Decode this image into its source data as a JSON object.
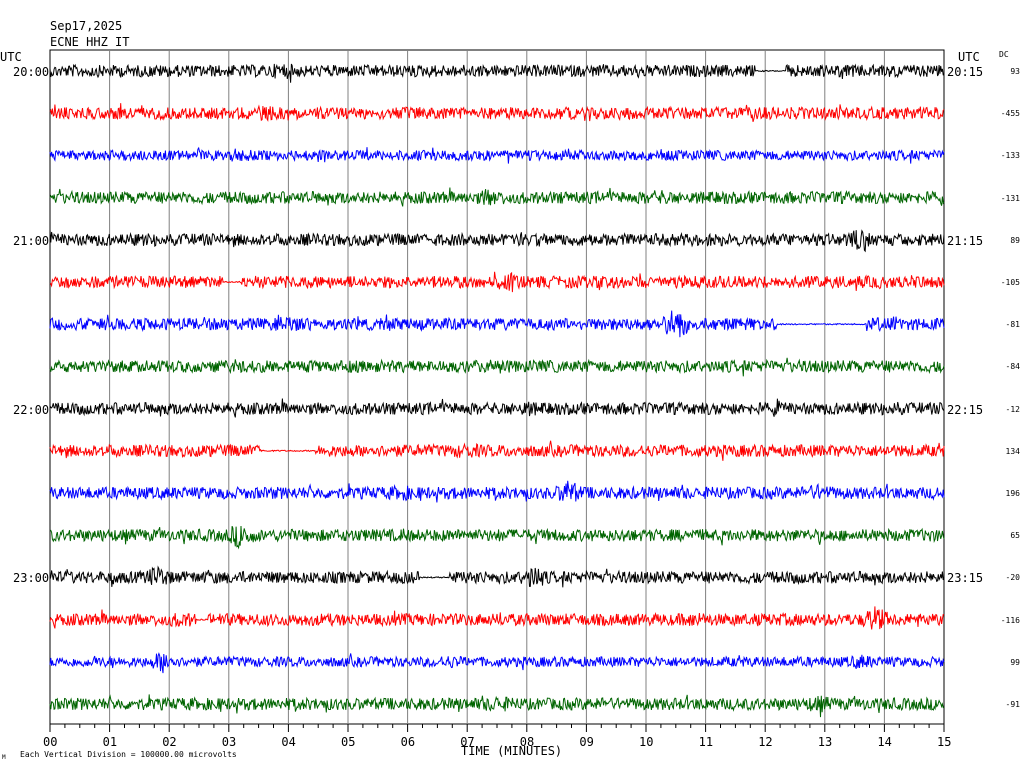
{
  "header": {
    "date": "Sep17,2025",
    "station": "ECNE HHZ IT",
    "left_tz": "UTC",
    "right_tz": "UTC",
    "dc_label": "DC"
  },
  "footer": {
    "scale_note": "Each Vertical Division = 100000.00 microvolts",
    "mark": "M",
    "xlabel": "TIME (MINUTES)"
  },
  "colors": {
    "cycle": [
      "#000000",
      "#ff0000",
      "#0000ff",
      "#006400"
    ],
    "grid": "#808080"
  },
  "chart_data": {
    "type": "line",
    "title": "",
    "xlabel": "TIME (MINUTES)",
    "ylabel": "",
    "xlim": [
      0,
      15
    ],
    "x_ticks": [
      "00",
      "01",
      "02",
      "03",
      "04",
      "05",
      "06",
      "07",
      "08",
      "09",
      "10",
      "11",
      "12",
      "13",
      "14",
      "15"
    ],
    "grid": true,
    "series": [
      {
        "start_label": "20:00",
        "end_label": "20:15",
        "dc": "93",
        "amp": 6,
        "events": [
          {
            "t": 3.9,
            "a": 9
          },
          {
            "t": 11.8,
            "a": 5
          }
        ],
        "gaps": [
          [
            11.85,
            12.35
          ]
        ]
      },
      {
        "start_label": "",
        "end_label": "",
        "dc": "-455",
        "amp": 6,
        "events": [
          {
            "t": 3.6,
            "a": 8
          },
          {
            "t": 14.7,
            "a": 7
          }
        ],
        "gaps": []
      },
      {
        "start_label": "",
        "end_label": "",
        "dc": "-133",
        "amp": 5,
        "events": [
          {
            "t": 3.2,
            "a": 8
          }
        ],
        "gaps": []
      },
      {
        "start_label": "",
        "end_label": "",
        "dc": "-131",
        "amp": 6,
        "events": [
          {
            "t": 7.4,
            "a": 10
          },
          {
            "t": 10.2,
            "a": 8
          }
        ],
        "gaps": []
      },
      {
        "start_label": "21:00",
        "end_label": "21:15",
        "dc": "89",
        "amp": 6,
        "events": [
          {
            "t": 13.6,
            "a": 12
          },
          {
            "t": 1.75,
            "a": 7
          }
        ],
        "gaps": []
      },
      {
        "start_label": "",
        "end_label": "",
        "dc": "-105",
        "amp": 6,
        "events": [
          {
            "t": 7.7,
            "a": 10
          }
        ],
        "gaps": [
          [
            2.9,
            3.2
          ]
        ]
      },
      {
        "start_label": "",
        "end_label": "",
        "dc": "-81",
        "amp": 6,
        "events": [
          {
            "t": 10.5,
            "a": 18
          },
          {
            "t": 4.0,
            "a": 9
          },
          {
            "t": 14.1,
            "a": 9
          }
        ],
        "gaps": [
          [
            12.2,
            13.7
          ]
        ]
      },
      {
        "start_label": "",
        "end_label": "",
        "dc": "-84",
        "amp": 6,
        "events": [
          {
            "t": 7.5,
            "a": 8
          }
        ],
        "gaps": []
      },
      {
        "start_label": "22:00",
        "end_label": "22:15",
        "dc": "-12",
        "amp": 6,
        "events": [
          {
            "t": 8.0,
            "a": 8
          },
          {
            "t": 14.1,
            "a": 8
          }
        ],
        "gaps": []
      },
      {
        "start_label": "",
        "end_label": "",
        "dc": "134",
        "amp": 6,
        "events": [
          {
            "t": 7.0,
            "a": 8
          }
        ],
        "gaps": [
          [
            3.6,
            4.45
          ]
        ]
      },
      {
        "start_label": "",
        "end_label": "",
        "dc": "196",
        "amp": 6,
        "events": [
          {
            "t": 8.7,
            "a": 14
          },
          {
            "t": 12.9,
            "a": 9
          },
          {
            "t": 5.9,
            "a": 8
          }
        ],
        "gaps": []
      },
      {
        "start_label": "",
        "end_label": "",
        "dc": "65",
        "amp": 6,
        "events": [
          {
            "t": 3.2,
            "a": 14
          }
        ],
        "gaps": []
      },
      {
        "start_label": "23:00",
        "end_label": "23:15",
        "dc": "-20",
        "amp": 6,
        "events": [
          {
            "t": 1.8,
            "a": 12
          },
          {
            "t": 8.1,
            "a": 13
          }
        ],
        "gaps": [
          [
            6.2,
            6.7
          ]
        ]
      },
      {
        "start_label": "",
        "end_label": "",
        "dc": "-116",
        "amp": 6,
        "events": [
          {
            "t": 13.85,
            "a": 14
          },
          {
            "t": 10.8,
            "a": 8
          },
          {
            "t": 2.2,
            "a": 8
          }
        ],
        "gaps": [
          [
            2.45,
            2.65
          ]
        ]
      },
      {
        "start_label": "",
        "end_label": "",
        "dc": "99",
        "amp": 5,
        "events": [
          {
            "t": 1.9,
            "a": 12
          },
          {
            "t": 13.6,
            "a": 8
          },
          {
            "t": 6.7,
            "a": 7
          }
        ],
        "gaps": []
      },
      {
        "start_label": "",
        "end_label": "",
        "dc": "-91",
        "amp": 6,
        "events": [
          {
            "t": 7.5,
            "a": 9
          },
          {
            "t": 12.9,
            "a": 9
          }
        ],
        "gaps": []
      }
    ]
  }
}
